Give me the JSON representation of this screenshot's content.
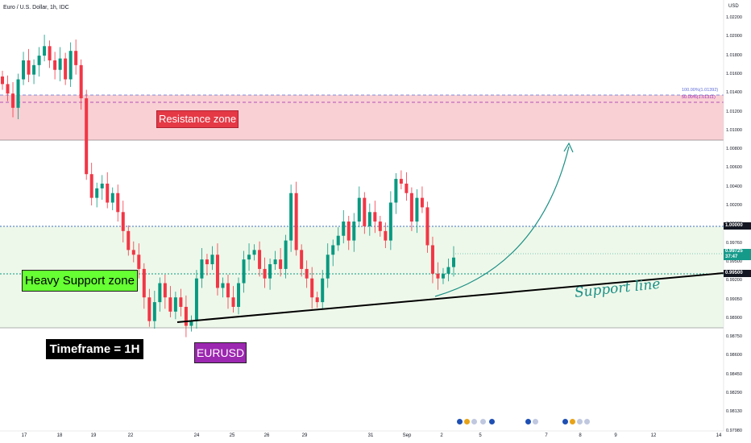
{
  "header": {
    "title": "Euro / U.S. Dollar, 1h, IDC",
    "currency": "USD"
  },
  "colors": {
    "up": "#089981",
    "down": "#f23645",
    "resistance_zone": "#f9d0d4",
    "support_zone": "#eef8ea"
  },
  "price_axis": [
    "1.02200",
    "1.02000",
    "1.01800",
    "1.01600",
    "1.01400",
    "1.01200",
    "1.01000",
    "1.00800",
    "1.00600",
    "1.00400",
    "1.00200",
    "0.99980",
    "0.99760",
    "0.99500",
    "0.99200",
    "0.99050",
    "0.98900",
    "0.98750",
    "0.98600",
    "0.98450",
    "0.98290",
    "0.98130",
    "0.97980"
  ],
  "price_tags": {
    "level_one": "1.00000",
    "current": "0.99725",
    "countdown": "37:47",
    "support_level": "0.99500"
  },
  "fib_labels": {
    "f100": "100.00%(1.01392)",
    "f50": "50.00%(1.01311)"
  },
  "date_axis": [
    "17",
    "18",
    "19",
    "22",
    "24",
    "25",
    "26",
    "29",
    "31",
    "Sep",
    "2",
    "5",
    "7",
    "8",
    "9",
    "12",
    "14"
  ],
  "annotations": {
    "resistance": "Resistance zone",
    "support": "Heavy Support zone",
    "timeframe": "Timeframe = 1H",
    "symbol": "EURUSD",
    "support_line": "Support line"
  },
  "chart_data": {
    "type": "candlestick",
    "title": "Euro / U.S. Dollar, 1h, IDC",
    "ylabel": "USD",
    "ylim": [
      0.979,
      1.0225
    ],
    "series": [
      {
        "close": [
          1.0155,
          1.0145,
          1.013,
          1.016,
          1.018,
          1.0165,
          1.0175,
          1.0185,
          1.0195,
          1.018,
          1.017,
          1.0182,
          1.016,
          1.019,
          1.0175,
          1.014,
          1.006,
          1.0035,
          1.0045,
          1.005,
          1.003,
          1.004,
          1.002,
          1.0,
          0.998,
          0.9975,
          0.996,
          0.993,
          0.9905,
          0.9925,
          0.9945,
          0.993,
          0.9915,
          0.993,
          0.992,
          0.99,
          0.9905,
          0.995,
          0.997,
          0.9965,
          0.9975,
          0.994,
          0.9945,
          0.993,
          0.992,
          0.9945,
          0.997,
          0.9975,
          0.998,
          0.996,
          0.995,
          0.9965,
          0.997,
          0.996,
          0.999,
          1.004,
          0.998,
          0.996,
          0.995,
          0.993,
          0.9925,
          0.995,
          0.9975,
          0.9985,
          0.9995,
          1.001,
          0.999,
          1.001,
          1.0035,
          1.0005,
          1.002,
          1.001,
          1.0,
          0.999,
          1.003,
          1.0055,
          1.005,
          1.004,
          1.001,
          1.0035,
          1.0025,
          0.9985,
          0.9955,
          0.995,
          0.9955,
          0.9962,
          0.9972
        ]
      }
    ]
  }
}
